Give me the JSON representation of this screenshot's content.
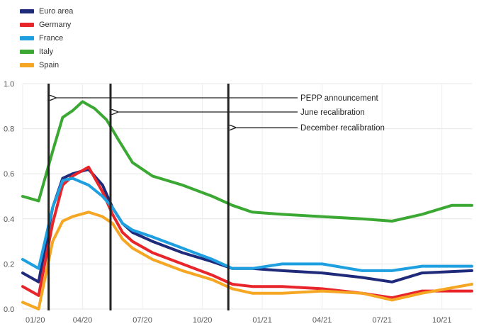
{
  "chart_data": {
    "type": "line",
    "title": "",
    "xlabel": "",
    "ylabel": "",
    "x_ticks": [
      "01/20",
      "04/20",
      "07/20",
      "10/20",
      "01/21",
      "04/21",
      "07/21",
      "10/21"
    ],
    "x_range": [
      0,
      22.5
    ],
    "ylim": [
      0.0,
      1.0
    ],
    "y_ticks": [
      0.0,
      0.2,
      0.4,
      0.6,
      0.8,
      1.0
    ],
    "y_tick_labels": [
      "0.0",
      "0.2",
      "0.4",
      "0.6",
      "0.8",
      "1.0"
    ],
    "grid": true,
    "legend_position": "top-left",
    "series": [
      {
        "name": "Euro area",
        "color": "#1f2a7a",
        "x": [
          0,
          0.8,
          1.5,
          2.0,
          2.5,
          3.3,
          4.0,
          4.5,
          5.0,
          5.5,
          6.5,
          8.0,
          9.5,
          10.5,
          11.5,
          13,
          15,
          17,
          18.5,
          20,
          22.5
        ],
        "y": [
          0.16,
          0.12,
          0.45,
          0.58,
          0.6,
          0.62,
          0.55,
          0.45,
          0.38,
          0.34,
          0.3,
          0.25,
          0.21,
          0.18,
          0.18,
          0.17,
          0.16,
          0.14,
          0.12,
          0.16,
          0.17
        ]
      },
      {
        "name": "Germany",
        "color": "#e8252a",
        "x": [
          0,
          0.8,
          1.5,
          2.0,
          2.5,
          3.3,
          4.0,
          4.5,
          5.0,
          5.5,
          6.5,
          8.0,
          9.5,
          10.5,
          11.5,
          13,
          15,
          17,
          18.5,
          20,
          22.5
        ],
        "y": [
          0.1,
          0.06,
          0.38,
          0.55,
          0.59,
          0.63,
          0.52,
          0.42,
          0.34,
          0.3,
          0.25,
          0.2,
          0.15,
          0.11,
          0.1,
          0.1,
          0.09,
          0.07,
          0.05,
          0.08,
          0.08
        ]
      },
      {
        "name": "France",
        "color": "#1d9fe0",
        "x": [
          0,
          0.8,
          1.5,
          2.0,
          2.5,
          3.3,
          4.0,
          4.5,
          5.0,
          5.5,
          6.5,
          8.0,
          9.5,
          10.5,
          11.5,
          13,
          15,
          17,
          18.5,
          20,
          22.5
        ],
        "y": [
          0.22,
          0.18,
          0.45,
          0.57,
          0.58,
          0.55,
          0.5,
          0.45,
          0.38,
          0.35,
          0.32,
          0.27,
          0.22,
          0.18,
          0.18,
          0.2,
          0.2,
          0.17,
          0.17,
          0.19,
          0.19
        ]
      },
      {
        "name": "Italy",
        "color": "#3aa832",
        "x": [
          0,
          0.8,
          1.5,
          2.0,
          2.5,
          3.0,
          3.6,
          4.2,
          4.8,
          5.5,
          6.5,
          8.0,
          9.5,
          10.5,
          11.5,
          13,
          15,
          17,
          18.5,
          20,
          21.5,
          22.5
        ],
        "y": [
          0.5,
          0.48,
          0.7,
          0.85,
          0.88,
          0.92,
          0.89,
          0.84,
          0.75,
          0.65,
          0.59,
          0.55,
          0.5,
          0.46,
          0.43,
          0.42,
          0.41,
          0.4,
          0.39,
          0.42,
          0.46,
          0.46
        ]
      },
      {
        "name": "Spain",
        "color": "#f5a623",
        "x": [
          0,
          0.8,
          1.5,
          2.0,
          2.5,
          3.3,
          4.0,
          4.5,
          5.0,
          5.5,
          6.5,
          8.0,
          9.5,
          10.5,
          11.5,
          13,
          15,
          17,
          18.5,
          20,
          22.5
        ],
        "y": [
          0.03,
          0.0,
          0.3,
          0.39,
          0.41,
          0.43,
          0.41,
          0.38,
          0.31,
          0.27,
          0.22,
          0.17,
          0.13,
          0.09,
          0.07,
          0.07,
          0.08,
          0.07,
          0.04,
          0.07,
          0.11
        ]
      }
    ],
    "vertical_lines": [
      {
        "x": 1.3,
        "label": "PEPP announcement"
      },
      {
        "x": 4.4,
        "label": "June recalibration"
      },
      {
        "x": 10.3,
        "label": "December recalibration"
      }
    ]
  }
}
